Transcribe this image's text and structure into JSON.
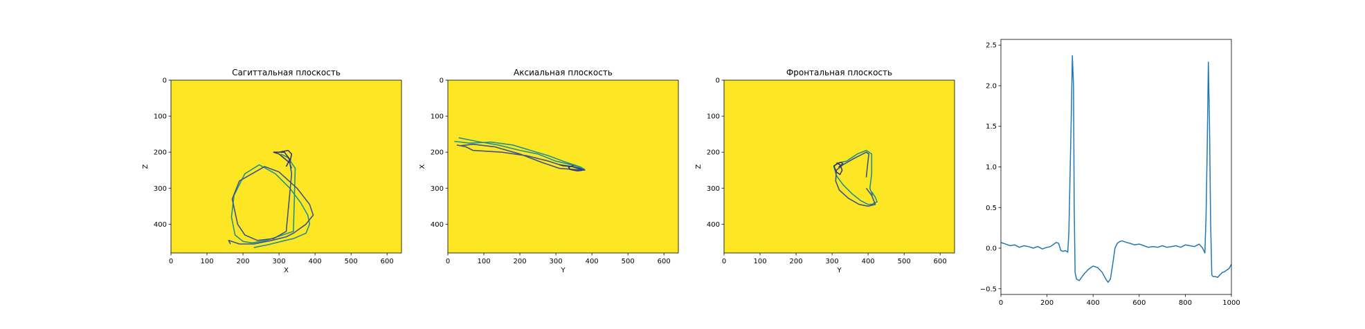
{
  "colors": {
    "background": "#ffffff",
    "plane_fill": "#fde725",
    "trace_teal": "#21918c",
    "trace_navy": "#3b528b",
    "trace_dark": "#31356e",
    "ecg_line": "#1f77b4",
    "axis": "#000000"
  },
  "chart_data": [
    {
      "type": "line",
      "title": "Сагиттальная плоскость",
      "xlabel": "X",
      "ylabel": "Z",
      "xlim": [
        0,
        640
      ],
      "ylim": [
        480,
        0
      ],
      "y_inverted": true,
      "xticks": [
        0,
        100,
        200,
        300,
        400,
        500,
        600
      ],
      "yticks": [
        0,
        100,
        200,
        300,
        400
      ],
      "background": "#fde725",
      "series": [
        {
          "color": "#21918c",
          "x": [
            230,
            270,
            310,
            340,
            375,
            385,
            380,
            360,
            330,
            290,
            245,
            205,
            175,
            168,
            178,
            200,
            225,
            265,
            310,
            340,
            345,
            325,
            305
          ],
          "y": [
            465,
            457,
            447,
            440,
            425,
            400,
            375,
            340,
            300,
            260,
            235,
            260,
            320,
            380,
            430,
            448,
            452,
            445,
            430,
            420,
            245,
            215,
            205
          ]
        },
        {
          "color": "#3b528b",
          "x": [
            165,
            160,
            190,
            230,
            280,
            320,
            340,
            375,
            395,
            385,
            350,
            300,
            260,
            190,
            170,
            185,
            205,
            240,
            285,
            320,
            335,
            330,
            335
          ],
          "y": [
            455,
            445,
            455,
            455,
            445,
            435,
            425,
            400,
            375,
            345,
            300,
            255,
            240,
            280,
            330,
            400,
            430,
            445,
            440,
            420,
            260,
            230,
            245
          ]
        },
        {
          "color": "#31356e",
          "x": [
            300,
            325,
            335,
            330,
            300,
            285,
            315,
            330,
            320
          ],
          "y": [
            200,
            195,
            205,
            230,
            205,
            200,
            200,
            220,
            240
          ]
        }
      ]
    },
    {
      "type": "line",
      "title": "Аксиальная плоскость",
      "xlabel": "Y",
      "ylabel": "X",
      "xlim": [
        0,
        640
      ],
      "ylim": [
        480,
        0
      ],
      "y_inverted": true,
      "xticks": [
        0,
        100,
        200,
        300,
        400,
        500,
        600
      ],
      "yticks": [
        0,
        100,
        200,
        300,
        400
      ],
      "background": "#fde725",
      "series": [
        {
          "color": "#21918c",
          "x": [
            18,
            60,
            120,
            180,
            230,
            280,
            320,
            350,
            370,
            380,
            360,
            330,
            300,
            250,
            200,
            140,
            80,
            30
          ],
          "y": [
            170,
            175,
            172,
            180,
            195,
            210,
            225,
            235,
            242,
            248,
            240,
            232,
            225,
            205,
            195,
            180,
            170,
            160
          ]
        },
        {
          "color": "#3b528b",
          "x": [
            25,
            50,
            70,
            150,
            220,
            280,
            320,
            345,
            360,
            380,
            350,
            310,
            260,
            200,
            130,
            70,
            35
          ],
          "y": [
            180,
            185,
            195,
            200,
            210,
            225,
            238,
            240,
            245,
            250,
            248,
            245,
            228,
            205,
            185,
            178,
            182
          ]
        },
        {
          "color": "#31356e",
          "x": [
            310,
            345,
            365,
            375,
            360,
            340,
            335,
            350
          ],
          "y": [
            235,
            240,
            245,
            250,
            252,
            248,
            242,
            237
          ]
        }
      ]
    },
    {
      "type": "line",
      "title": "Фронтальная плоскость",
      "xlabel": "Y",
      "ylabel": "Z",
      "xlim": [
        0,
        640
      ],
      "ylim": [
        480,
        0
      ],
      "y_inverted": true,
      "xticks": [
        0,
        100,
        200,
        300,
        400,
        500,
        600
      ],
      "yticks": [
        0,
        100,
        200,
        300,
        400
      ],
      "background": "#fde725",
      "series": [
        {
          "color": "#21918c",
          "x": [
            410,
            420,
            425,
            410,
            400,
            380,
            355,
            330,
            312,
            305,
            315,
            340,
            370,
            395,
            410,
            410,
            405,
            412
          ],
          "y": [
            310,
            325,
            338,
            345,
            345,
            335,
            315,
            290,
            265,
            240,
            230,
            225,
            205,
            195,
            205,
            260,
            300,
            320
          ]
        },
        {
          "color": "#3b528b",
          "x": [
            395,
            410,
            420,
            400,
            375,
            345,
            320,
            310,
            312,
            330,
            360,
            395,
            402,
            398,
            395
          ],
          "y": [
            300,
            320,
            345,
            350,
            345,
            328,
            305,
            280,
            250,
            235,
            218,
            200,
            205,
            240,
            270
          ]
        },
        {
          "color": "#31356e",
          "x": [
            312,
            322,
            328,
            322,
            312,
            305,
            315,
            325,
            330,
            318
          ],
          "y": [
            230,
            235,
            250,
            262,
            255,
            238,
            232,
            228,
            232,
            242
          ]
        }
      ]
    },
    {
      "type": "line",
      "title": "",
      "xlabel": "",
      "ylabel": "",
      "xlim": [
        0,
        1000
      ],
      "ylim": [
        -0.57,
        2.57
      ],
      "xticks": [
        0,
        200,
        400,
        600,
        800,
        1000
      ],
      "yticks": [
        -0.5,
        0.0,
        0.5,
        1.0,
        1.5,
        2.0,
        2.5
      ],
      "series": [
        {
          "color": "#1f77b4",
          "x": [
            0,
            20,
            40,
            60,
            80,
            100,
            120,
            140,
            160,
            180,
            200,
            215,
            230,
            240,
            250,
            260,
            270,
            280,
            290,
            295,
            300,
            305,
            310,
            315,
            318,
            322,
            328,
            340,
            360,
            380,
            400,
            420,
            440,
            455,
            465,
            475,
            485,
            495,
            505,
            515,
            525,
            535,
            545,
            560,
            580,
            600,
            620,
            640,
            660,
            680,
            700,
            720,
            740,
            760,
            780,
            800,
            820,
            840,
            860,
            875,
            885,
            890,
            895,
            900,
            905,
            910,
            915,
            920,
            930,
            940,
            950,
            960,
            970,
            980,
            990,
            1000
          ],
          "y": [
            0.07,
            0.05,
            0.03,
            0.04,
            0.01,
            0.03,
            0.02,
            0.0,
            0.02,
            -0.01,
            0.01,
            0.02,
            0.05,
            0.07,
            0.06,
            -0.03,
            -0.04,
            -0.03,
            -0.05,
            0.2,
            0.9,
            1.6,
            2.37,
            2.0,
            0.5,
            -0.3,
            -0.38,
            -0.4,
            -0.32,
            -0.26,
            -0.22,
            -0.24,
            -0.3,
            -0.38,
            -0.42,
            -0.38,
            -0.2,
            0.0,
            0.06,
            0.08,
            0.09,
            0.08,
            0.07,
            0.06,
            0.04,
            0.05,
            0.03,
            0.01,
            0.02,
            0.01,
            0.03,
            0.01,
            0.02,
            0.03,
            0.01,
            0.04,
            0.03,
            0.02,
            0.05,
            0.0,
            -0.06,
            0.4,
            1.2,
            2.29,
            1.5,
            0.3,
            -0.33,
            -0.35,
            -0.35,
            -0.36,
            -0.33,
            -0.3,
            -0.29,
            -0.27,
            -0.25,
            -0.2
          ]
        }
      ]
    }
  ]
}
